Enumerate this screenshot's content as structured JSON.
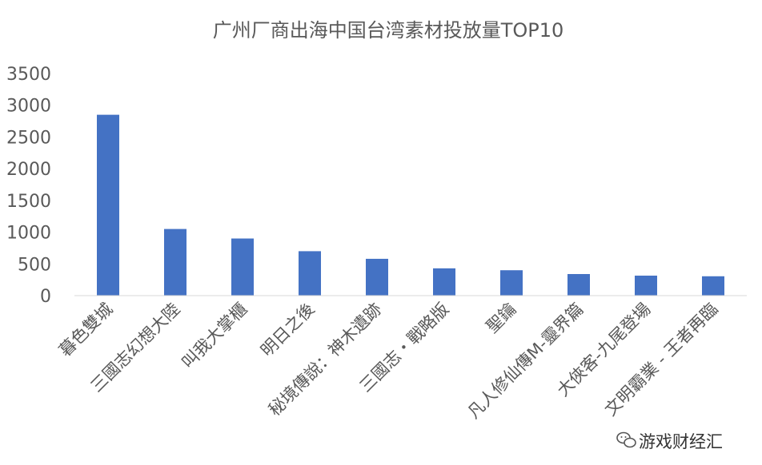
{
  "chart_data": {
    "type": "bar",
    "title": "广州厂商出海中国台湾素材投放量TOP10",
    "xlabel": "",
    "ylabel": "",
    "categories": [
      "暮色雙城",
      "三國志幻想大陸",
      "叫我大掌櫃",
      "明日之後",
      "秘境傳說：神木遺跡",
      "三國志・戰略版",
      "聖鑰",
      "凡人修仙傳M-靈界篇",
      "大俠客-九尾登場",
      "文明霸業 - 王者再臨"
    ],
    "values": [
      2850,
      1050,
      900,
      700,
      580,
      430,
      400,
      340,
      315,
      305
    ],
    "ylim": [
      0,
      3500
    ],
    "yticks": [
      0,
      500,
      1000,
      1500,
      2000,
      2500,
      3000,
      3500
    ],
    "grid": false,
    "legend": "none",
    "bar_color": "#4472C4"
  },
  "watermark": {
    "icon": "wechat-icon",
    "text": "游戏财经汇"
  }
}
